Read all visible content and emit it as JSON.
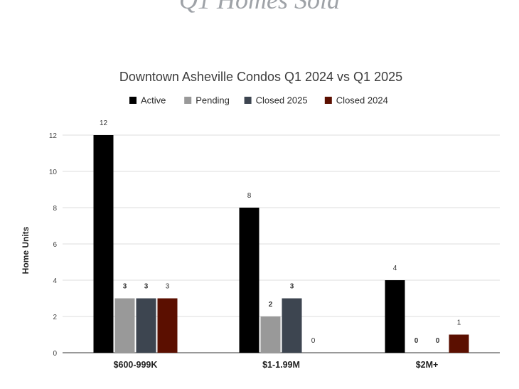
{
  "page": {
    "heading": "Q1 Homes Sold"
  },
  "chart_data": {
    "type": "bar",
    "title": "Downtown Asheville Condos Q1 2024 vs Q1 2025",
    "ylabel": "Home Units",
    "xlabel": "",
    "categories": [
      "$600-999K",
      "$1-1.99M",
      "$2M+"
    ],
    "series": [
      {
        "name": "Active",
        "color": "#000000",
        "values": [
          12,
          8,
          4
        ]
      },
      {
        "name": "Pending",
        "color": "#999999",
        "values": [
          3,
          2,
          0
        ]
      },
      {
        "name": "Closed 2025",
        "color": "#3d4550",
        "values": [
          3,
          3,
          0
        ]
      },
      {
        "name": "Closed 2024",
        "color": "#5b0f00",
        "values": [
          3,
          0,
          1
        ]
      }
    ],
    "ylim": [
      0,
      12
    ],
    "yticks": [
      0,
      2,
      4,
      6,
      8,
      10,
      12
    ],
    "grid": true,
    "legend_position": "top"
  }
}
